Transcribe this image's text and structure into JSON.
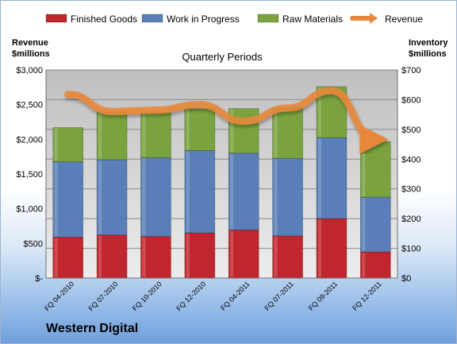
{
  "company": "Western Digital",
  "chart_data": {
    "type": "bar",
    "stacked": true,
    "title": "Quarterly Periods",
    "ylabel_left": [
      "Revenue",
      "$millions"
    ],
    "ylabel_right": [
      "Inventory",
      "$millions"
    ],
    "categories": [
      "FQ 04-2010",
      "FQ 07-2010",
      "FQ 10-2010",
      "FQ 12-2010",
      "FQ 04-2011",
      "FQ 07-2011",
      "FQ 09-2011",
      "FQ 12-2011"
    ],
    "series": [
      {
        "name": "Finished Goods",
        "axis": "right",
        "color": "#c0262d",
        "values": [
          138,
          145,
          140,
          152,
          162,
          142,
          200,
          88
        ]
      },
      {
        "name": "Work in Progress",
        "axis": "right",
        "color": "#5a7fb8",
        "values": [
          253,
          253,
          265,
          277,
          258,
          261,
          272,
          184
        ]
      },
      {
        "name": "Raw Materials",
        "axis": "right",
        "color": "#7aa33f",
        "values": [
          115,
          160,
          152,
          140,
          150,
          170,
          172,
          187
        ]
      }
    ],
    "line": {
      "name": "Revenue",
      "axis": "left",
      "color": "#e8873a",
      "values": [
        2650,
        2400,
        2420,
        2500,
        2260,
        2450,
        2700,
        2000
      ]
    },
    "ylim_left": [
      0,
      3000
    ],
    "yticks_left": [
      "$-",
      "$500",
      "$1,000",
      "$1,500",
      "$2,000",
      "$2,500",
      "$3,000"
    ],
    "ylim_right": [
      0,
      700
    ],
    "yticks_right": [
      "$0",
      "$100",
      "$200",
      "$300",
      "$400",
      "$500",
      "$600",
      "$700"
    ],
    "legend_position": "top",
    "grid": true
  }
}
